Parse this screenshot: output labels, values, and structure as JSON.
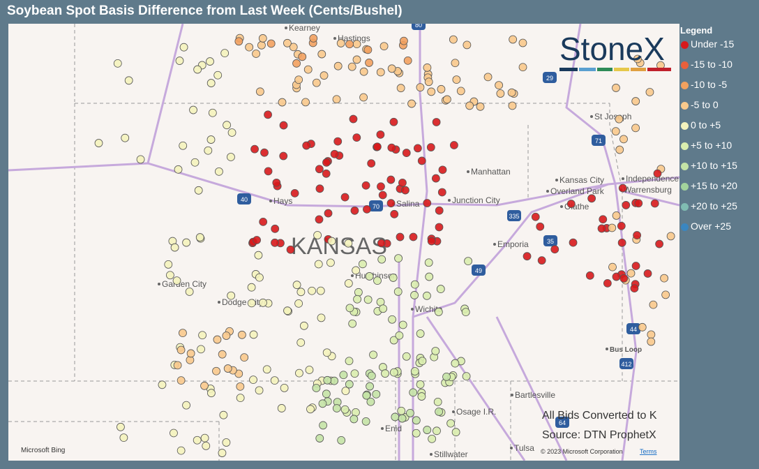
{
  "title": "Soybean Spot Basis Difference from Last Week (Cents/Bushel)",
  "legend": {
    "title": "Legend",
    "items": [
      {
        "label": "Under -15",
        "color": "#d7191c"
      },
      {
        "label": "-15 to -10",
        "color": "#e8603c"
      },
      {
        "label": "-10 to -5",
        "color": "#f2a15f"
      },
      {
        "label": "-5 to 0",
        "color": "#f8c98c"
      },
      {
        "label": "0 to +5",
        "color": "#f4f3bd"
      },
      {
        "label": "+5 to +10",
        "color": "#d9edae"
      },
      {
        "label": "+10 to +15",
        "color": "#c4e3a6"
      },
      {
        "label": "+15 to +20",
        "color": "#a3d39c"
      },
      {
        "label": "+20 to +25",
        "color": "#80bcb2"
      },
      {
        "label": "Over +25",
        "color": "#3a86c0"
      }
    ]
  },
  "logo": "StoneX",
  "state_label": "KANSAS",
  "places": [
    "Kearney",
    "Hastings",
    "St Joseph",
    "Manhattan",
    "Kansas City",
    "Independence",
    "Overland Park",
    "Olathe",
    "Warrensburg",
    "Hays",
    "Salina",
    "Junction City",
    "Emporia",
    "Hutchinson",
    "Garden City",
    "Dodge City",
    "Wichita",
    "Bus Loop",
    "Bartlesville",
    "Osage I.R.",
    "Enid",
    "Stillwater",
    "Tulsa"
  ],
  "shields": [
    "80",
    "29",
    "71",
    "40",
    "70",
    "335",
    "35",
    "49",
    "44",
    "412",
    "64"
  ],
  "notes": [
    "All Bids Converted to K",
    "Source: DTN ProphetX"
  ],
  "attribution": {
    "bing": "Microsoft Bing",
    "copyright": "© 2023 Microsoft Corporation",
    "terms": "Terms"
  }
}
